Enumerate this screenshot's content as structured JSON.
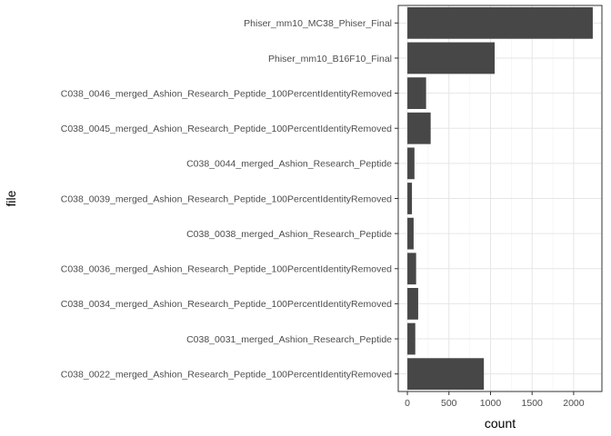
{
  "chart_data": {
    "type": "bar",
    "orientation": "horizontal",
    "xlabel": "count",
    "ylabel": "file",
    "xlim": [
      -110,
      2340
    ],
    "x_ticks": [
      0,
      500,
      1000,
      1500,
      2000
    ],
    "x_tick_labels": [
      "0",
      "500",
      "1000",
      "1500",
      "2000"
    ],
    "grid": true,
    "categories": [
      "Phiser_mm10_MC38_Phiser_Final",
      "Phiser_mm10_B16F10_Final",
      "C038_0046_merged_Ashion_Research_Peptide_100PercentIdentityRemoved",
      "C038_0045_merged_Ashion_Research_Peptide_100PercentIdentityRemoved",
      "C038_0044_merged_Ashion_Research_Peptide",
      "C038_0039_merged_Ashion_Research_Peptide_100PercentIdentityRemoved",
      "C038_0038_merged_Ashion_Research_Peptide",
      "C038_0036_merged_Ashion_Research_Peptide_100PercentIdentityRemoved",
      "C038_0034_merged_Ashion_Research_Peptide_100PercentIdentityRemoved",
      "C038_0031_merged_Ashion_Research_Peptide",
      "C038_0022_merged_Ashion_Research_Peptide_100PercentIdentityRemoved"
    ],
    "values": [
      2230,
      1050,
      225,
      280,
      85,
      55,
      75,
      105,
      130,
      95,
      920
    ],
    "colors": {
      "bar": "#474747",
      "grid": "#e6e6e6",
      "border": "#333333"
    }
  }
}
